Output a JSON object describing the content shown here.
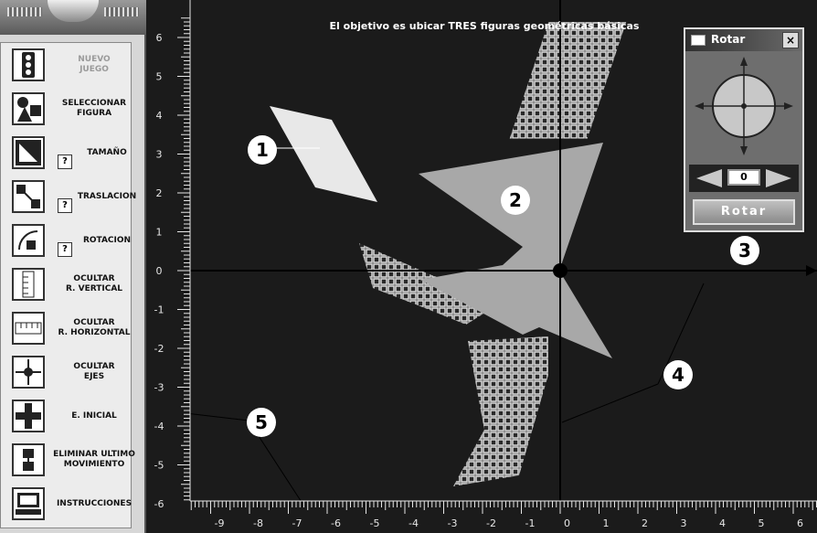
{
  "goal_text": "El objetivo es ubicar TRES figuras geométricas básicas",
  "menu": [
    {
      "label": "NUEVO\nJUEGO",
      "icon": "traffic-light-icon",
      "dim": true,
      "help": false
    },
    {
      "label": "SELECCIONAR\nFIGURA",
      "icon": "shapes-icon",
      "dim": false,
      "help": false
    },
    {
      "label": "TAMAÑO",
      "icon": "resize-icon",
      "dim": false,
      "help": true
    },
    {
      "label": "TRASLACION",
      "icon": "translate-icon",
      "dim": false,
      "help": true
    },
    {
      "label": "ROTACION",
      "icon": "rotate-icon",
      "dim": false,
      "help": true
    },
    {
      "label": "OCULTAR\nR. VERTICAL",
      "icon": "vertical-ruler-icon",
      "dim": false,
      "help": false
    },
    {
      "label": "OCULTAR\nR. HORIZONTAL",
      "icon": "horizontal-ruler-icon",
      "dim": false,
      "help": false
    },
    {
      "label": "OCULTAR\nEJES",
      "icon": "axes-icon",
      "dim": false,
      "help": false
    },
    {
      "label": "E. INICIAL",
      "icon": "puzzle-icon",
      "dim": false,
      "help": false
    },
    {
      "label": "ELIMINAR ULTIMO\nMOVIMIENTO",
      "icon": "undo-icon",
      "dim": false,
      "help": false
    },
    {
      "label": "INSTRUCCIONES",
      "icon": "computer-icon",
      "dim": false,
      "help": false
    }
  ],
  "help_mark": "?",
  "rotate_panel": {
    "title": "Rotar",
    "close": "×",
    "angle": "0",
    "button": "Rotar"
  },
  "x_ticks": [
    "-9",
    "-8",
    "-7",
    "-6",
    "-5",
    "-4",
    "-3",
    "-2",
    "-1",
    "0",
    "1",
    "2",
    "3",
    "4",
    "5",
    "6"
  ],
  "y_ticks": [
    "6",
    "5",
    "4",
    "3",
    "2",
    "1",
    "0",
    "-1",
    "-2",
    "-3",
    "-4",
    "-5",
    "-6"
  ],
  "callouts": [
    "1",
    "2",
    "3",
    "4",
    "5"
  ],
  "colors": {
    "background": "#1b1b1b",
    "shape1": "#e8e8e8",
    "shape2": "#a8a8a8",
    "ruler": "#e6e6e6"
  }
}
